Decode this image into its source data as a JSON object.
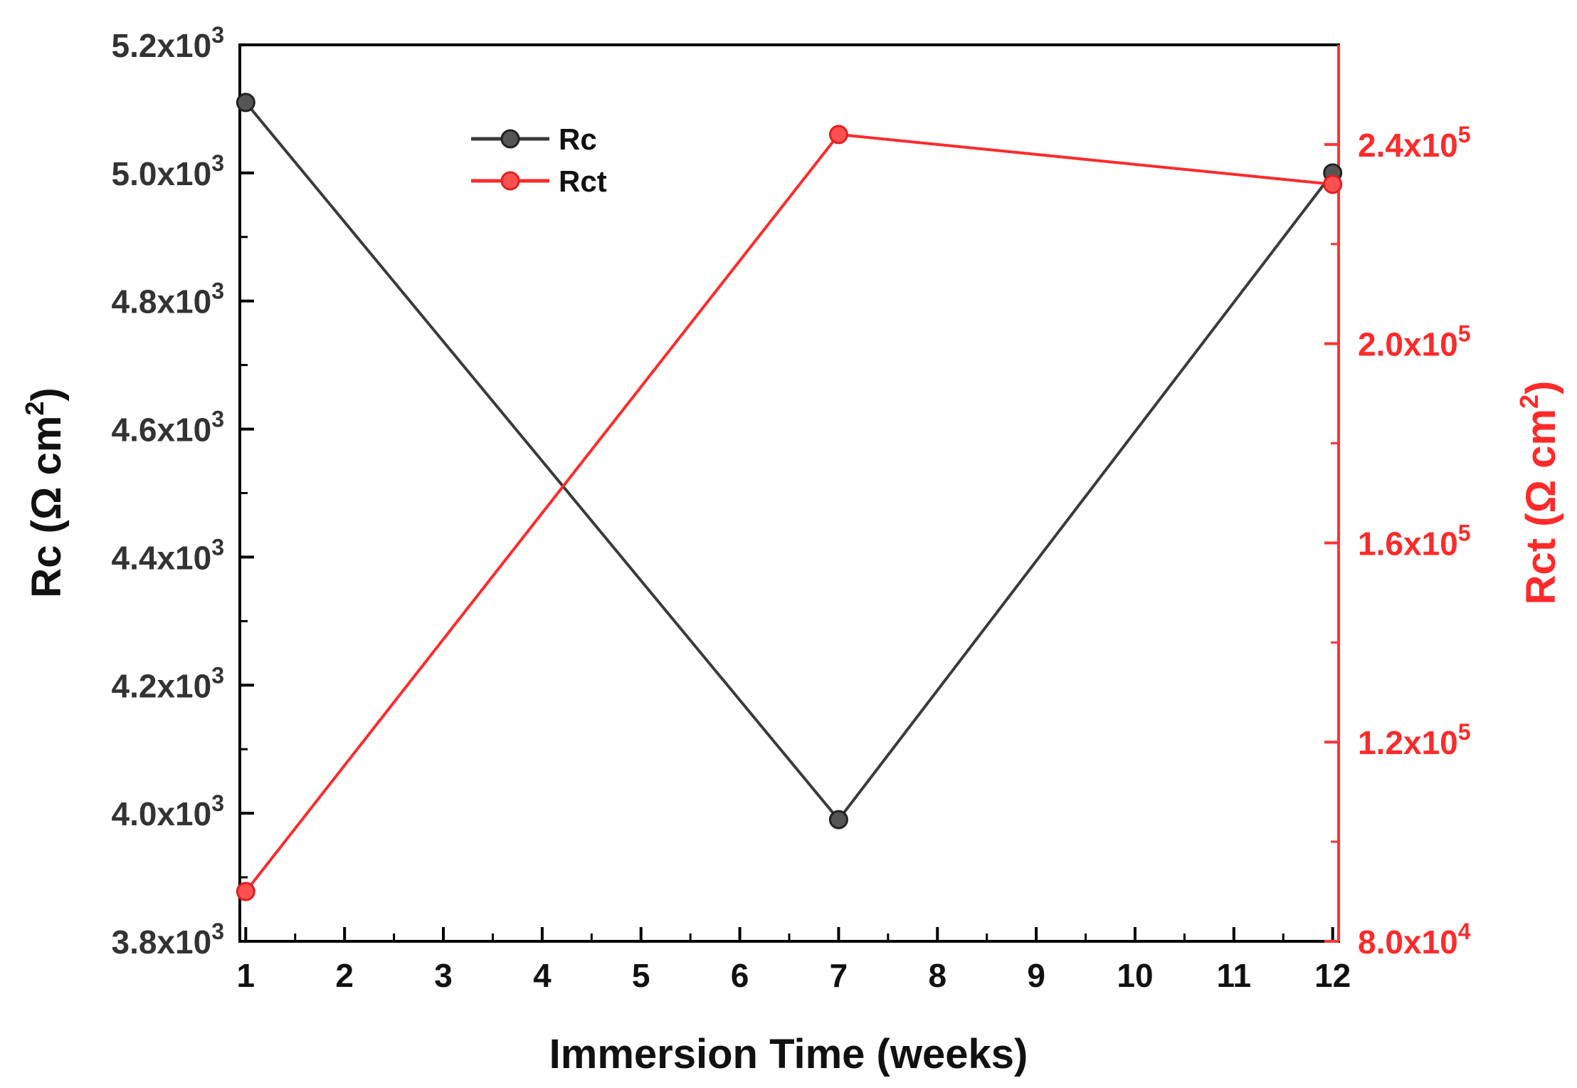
{
  "chart_data": {
    "type": "line",
    "title": "",
    "x": [
      1,
      7,
      12
    ],
    "xlabel": "Immersion Time (weeks)",
    "xlim": [
      0.94,
      12.06
    ],
    "xticks": [
      "1",
      "2",
      "3",
      "4",
      "5",
      "6",
      "7",
      "8",
      "9",
      "10",
      "11",
      "12"
    ],
    "left_axis": {
      "label_main": "Rc (Ω cm",
      "label_sup": "2",
      "label_close": ")",
      "ylim": [
        3800,
        5200
      ],
      "major_ticks": [
        3800,
        4000,
        4200,
        4400,
        4600,
        4800,
        5000,
        5200
      ],
      "tick_labels": [
        {
          "mant": "3.8x10",
          "exp": "3"
        },
        {
          "mant": "4.0x10",
          "exp": "3"
        },
        {
          "mant": "4.2x10",
          "exp": "3"
        },
        {
          "mant": "4.4x10",
          "exp": "3"
        },
        {
          "mant": "4.6x10",
          "exp": "3"
        },
        {
          "mant": "4.8x10",
          "exp": "3"
        },
        {
          "mant": "5.0x10",
          "exp": "3"
        },
        {
          "mant": "5.2x10",
          "exp": "3"
        }
      ],
      "color": "#333333"
    },
    "right_axis": {
      "label_main": "Rct (Ω cm",
      "label_sup": "2",
      "label_close": ")",
      "ylim": [
        80000,
        260000
      ],
      "major_ticks": [
        80000,
        120000,
        160000,
        200000,
        240000
      ],
      "tick_labels": [
        {
          "mant": "8.0x10",
          "exp": "4"
        },
        {
          "mant": "1.2x10",
          "exp": "5"
        },
        {
          "mant": "1.6x10",
          "exp": "5"
        },
        {
          "mant": "2.0x10",
          "exp": "5"
        },
        {
          "mant": "2.4x10",
          "exp": "5"
        }
      ],
      "color": "#ff2a2a"
    },
    "series": [
      {
        "name": "Rc",
        "axis": "left",
        "color": "#3a3a3a",
        "values": [
          5110,
          3990,
          5000
        ]
      },
      {
        "name": "Rct",
        "axis": "right",
        "color": "#ff2a2a",
        "values": [
          90000,
          242000,
          232000
        ]
      }
    ],
    "legend": {
      "position": "top-left",
      "entries": [
        "Rc",
        "Rct"
      ]
    },
    "grid": false
  }
}
